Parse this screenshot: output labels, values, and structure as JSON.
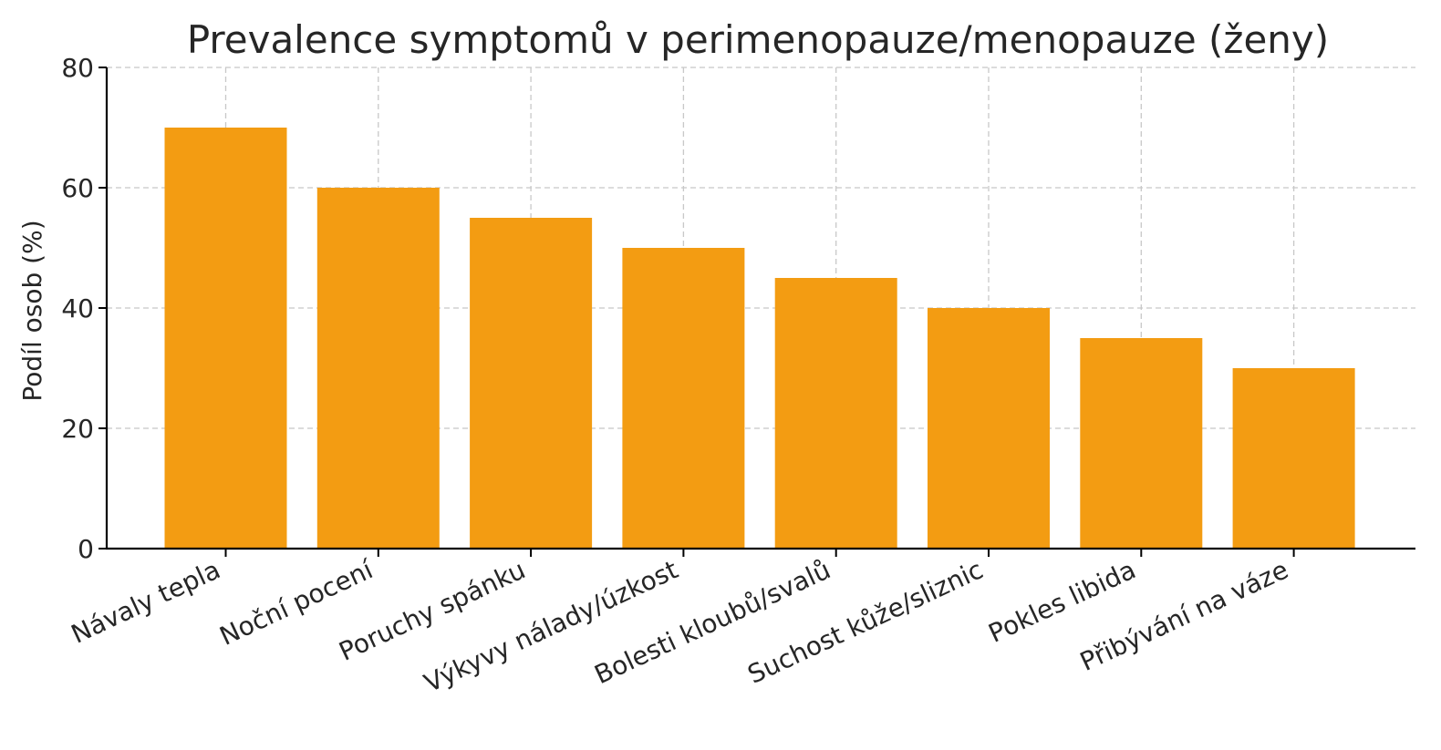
{
  "chart_data": {
    "type": "bar",
    "title": "Prevalence symptomů v perimenopauze/menopauze (ženy)",
    "xlabel": "",
    "ylabel": "Podíl osob (%)",
    "categories": [
      "Návaly tepla",
      "Noční pocení",
      "Poruchy spánku",
      "Výkyvy nálady/úzkost",
      "Bolesti kloubů/svalů",
      "Suchost kůže/sliznic",
      "Pokles libida",
      "Přibývání na váze"
    ],
    "values": [
      70,
      60,
      55,
      50,
      45,
      40,
      35,
      30
    ],
    "ylim": [
      0,
      80
    ],
    "yticks": [
      0,
      20,
      40,
      60,
      80
    ],
    "grid": true,
    "bar_color": "#f39c12",
    "legend": "none"
  }
}
